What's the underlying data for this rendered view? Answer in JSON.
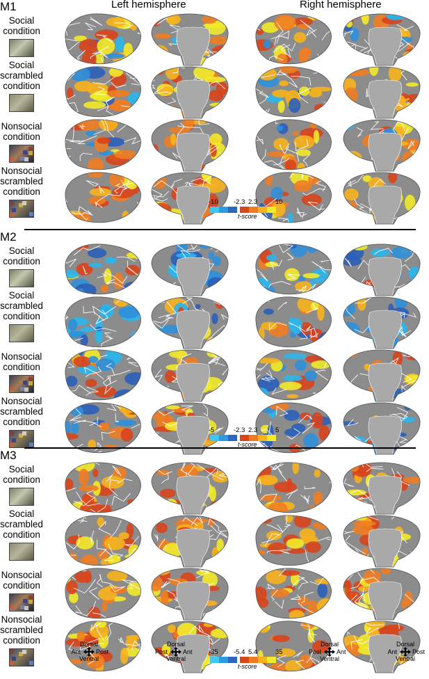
{
  "header": {
    "left": "Left hemisphere",
    "right": "Right hemisphere"
  },
  "conditions": [
    {
      "label": "Social\ncondition",
      "thumb_colors": [
        "#7a7f66",
        "#c4c7ae",
        "#4d5541"
      ]
    },
    {
      "label": "Social\nscrambled\ncondition",
      "thumb_colors": [
        "#8a8b70",
        "#b7b69c",
        "#5a5a45"
      ]
    },
    {
      "label": "Nonsocial\ncondition",
      "thumb_colors": [
        "#3a3f55",
        "#a47c5a",
        "#1d2030"
      ]
    },
    {
      "label": "Nonsocial\nscrambled\ncondition",
      "thumb_colors": [
        "#404a78",
        "#8a7a55",
        "#2c3150"
      ]
    }
  ],
  "panels": [
    {
      "id": "M1",
      "colorbar": {
        "neg_min": "-10",
        "neg_thr": "-2.3",
        "pos_thr": "2.3",
        "pos_max": "10",
        "unit": "t-score"
      }
    },
    {
      "id": "M2",
      "colorbar": {
        "neg_min": "-5",
        "neg_thr": "-2.3",
        "pos_thr": "2.3",
        "pos_max": "5",
        "unit": "t-score"
      }
    },
    {
      "id": "M3",
      "colorbar": {
        "neg_min": "-35",
        "neg_thr": "-5.4",
        "pos_thr": "5.4",
        "pos_max": "35",
        "unit": "t-score"
      }
    }
  ],
  "orientation": {
    "lateral_left": {
      "top": "Dorsal",
      "left": "Ant",
      "right": "Post",
      "bottom": "Ventral"
    },
    "medial_left": {
      "top": "Dorsal",
      "left": "Post",
      "right": "Ant",
      "bottom": "Ventral"
    },
    "medial_right": {
      "top": "Dorsal",
      "left": "Post",
      "right": "Ant",
      "bottom": "Ventral"
    },
    "lateral_right": {
      "top": "Dorsal",
      "left": "Ant",
      "right": "Post",
      "bottom": "Ventral"
    }
  },
  "colors": {
    "cortex_gray": "#8c8c8c",
    "medial_wall": "#a9a9a9",
    "neg_colors": [
      "#29b6ec",
      "#2f8fd8",
      "#2c5fb8"
    ],
    "pos_colors": [
      "#d8441c",
      "#ef7d22",
      "#f7b21d",
      "#f2ea2a"
    ]
  },
  "activation": {
    "M1": [
      [
        "mix",
        "mix",
        "mix",
        "mix"
      ],
      [
        "mix",
        "pos",
        "mix",
        "pos"
      ],
      [
        "mix",
        "pos",
        "mix",
        "mix"
      ],
      [
        "pos",
        "pos",
        "mix",
        "pos"
      ]
    ],
    "M2": [
      [
        "mixb",
        "neg",
        "mixb",
        "neg"
      ],
      [
        "neg",
        "neg",
        "mixb",
        "neg"
      ],
      [
        "mixb",
        "mix",
        "mixb",
        "mix"
      ],
      [
        "mixb",
        "pos",
        "mixb",
        "neg"
      ]
    ],
    "M3": [
      [
        "pos",
        "pos",
        "pos",
        "pos"
      ],
      [
        "pos",
        "pos",
        "pos",
        "pos"
      ],
      [
        "pos",
        "pos",
        "mix",
        "pos"
      ],
      [
        "pos",
        "pos",
        "pos",
        "pos"
      ]
    ]
  }
}
